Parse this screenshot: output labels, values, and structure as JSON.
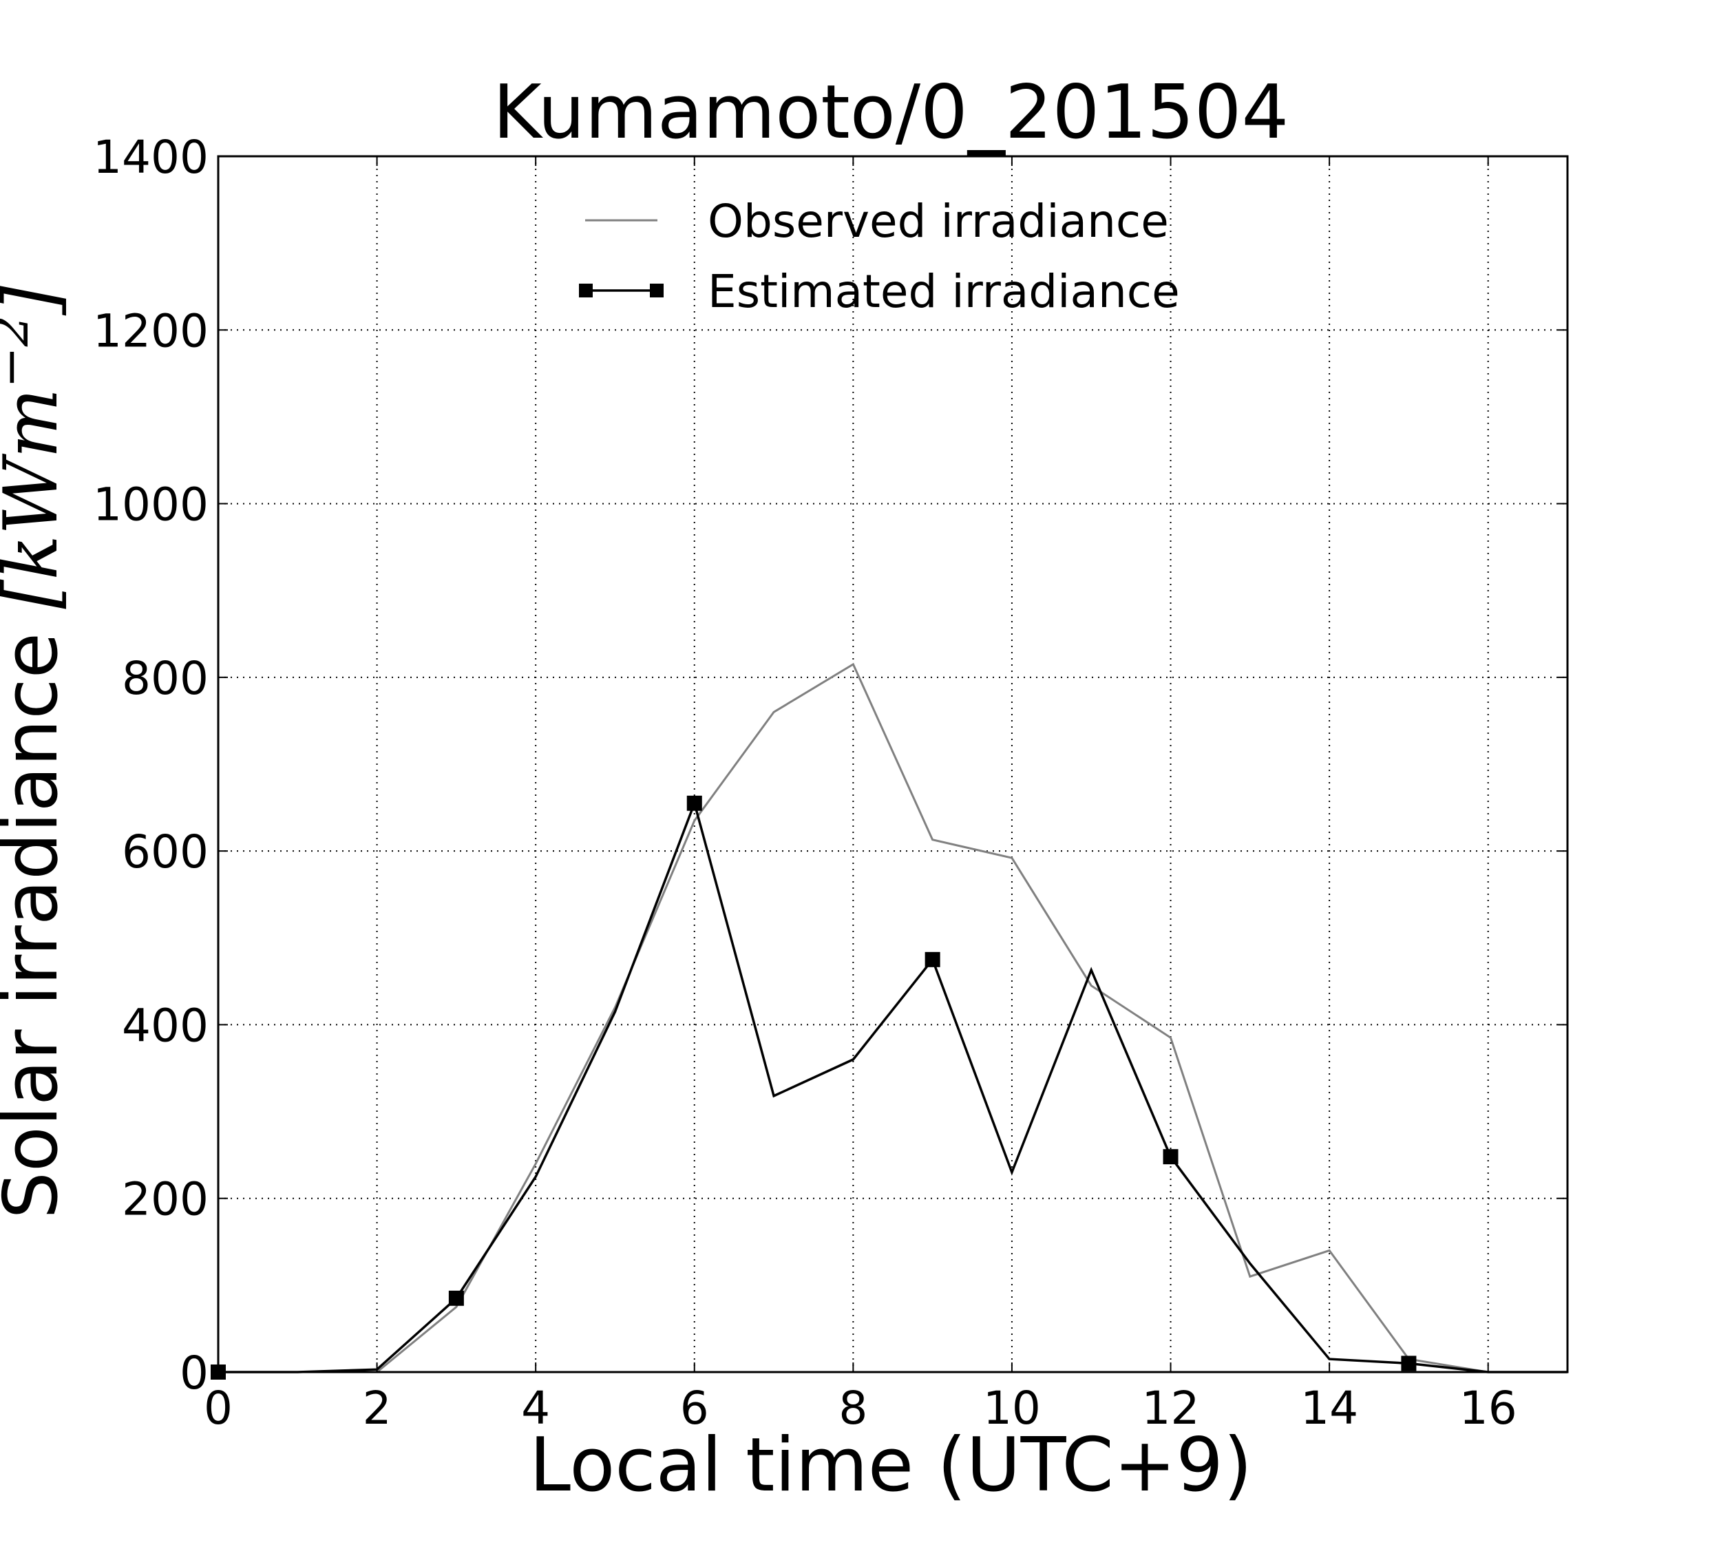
{
  "chart_data": {
    "type": "line",
    "title": "Kumamoto/0_201504",
    "xlabel": "Local time (UTC+9)",
    "ylabel": {
      "text": "Solar irradiance ",
      "math": "[kWm",
      "math_sup": "−2",
      "math_close": "]"
    },
    "xlim": [
      0,
      17
    ],
    "ylim": [
      0,
      1400
    ],
    "xticks": [
      0,
      2,
      4,
      6,
      8,
      10,
      12,
      14,
      16
    ],
    "xtick_labels": [
      "0",
      "2",
      "4",
      "6",
      "8",
      "10",
      "12",
      "14",
      "16"
    ],
    "yticks": [
      0,
      200,
      400,
      600,
      800,
      1000,
      1200,
      1400
    ],
    "ytick_labels": [
      "0",
      "200",
      "400",
      "600",
      "800",
      "1000",
      "1200",
      "1400"
    ],
    "grid": true,
    "legend_position": "top-center",
    "series": [
      {
        "name": "Observed irradiance",
        "color": "#808080",
        "marker": "none",
        "x": [
          0,
          1,
          2,
          3,
          4,
          5,
          6,
          7,
          8,
          9,
          10,
          11,
          12,
          13,
          14,
          15,
          16,
          17
        ],
        "y": [
          0,
          0,
          0,
          75,
          240,
          420,
          635,
          760,
          815,
          613,
          592,
          445,
          385,
          110,
          140,
          15,
          0,
          0
        ]
      },
      {
        "name": "Estimated irradiance",
        "color": "#000000",
        "marker": "square",
        "markers_x": [
          0,
          3,
          6,
          9,
          12,
          15
        ],
        "x": [
          0,
          1,
          2,
          3,
          4,
          5,
          6,
          7,
          8,
          9,
          10,
          11,
          12,
          13,
          14,
          15,
          16,
          17
        ],
        "y": [
          0,
          0,
          3,
          85,
          225,
          415,
          655,
          318,
          360,
          475,
          230,
          463,
          248,
          125,
          15,
          10,
          0,
          0
        ]
      }
    ]
  }
}
